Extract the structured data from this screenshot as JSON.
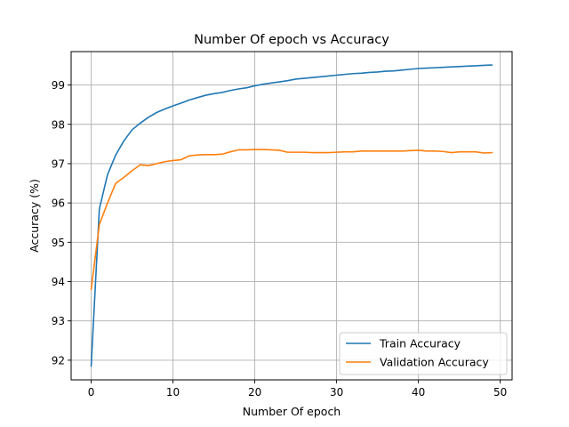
{
  "chart_data": {
    "type": "line",
    "title": "Number Of epoch vs Accuracy",
    "xlabel": "Number Of epoch",
    "ylabel": "Accuracy (%)",
    "xlim": [
      -2.45,
      51.45
    ],
    "ylim": [
      91.5,
      99.85
    ],
    "xticks": [
      0,
      10,
      20,
      30,
      40,
      50
    ],
    "yticks": [
      92,
      93,
      94,
      95,
      96,
      97,
      98,
      99
    ],
    "grid": true,
    "legend_position": "bottom-right",
    "x": [
      0,
      1,
      2,
      3,
      4,
      5,
      6,
      7,
      8,
      9,
      10,
      11,
      12,
      13,
      14,
      15,
      16,
      17,
      18,
      19,
      20,
      21,
      22,
      23,
      24,
      25,
      26,
      27,
      28,
      29,
      30,
      31,
      32,
      33,
      34,
      35,
      36,
      37,
      38,
      39,
      40,
      41,
      42,
      43,
      44,
      45,
      46,
      47,
      48,
      49
    ],
    "series": [
      {
        "name": "Train Accuracy",
        "color": "#1f77b4",
        "values": [
          91.85,
          95.85,
          96.72,
          97.22,
          97.58,
          97.86,
          98.03,
          98.18,
          98.3,
          98.39,
          98.47,
          98.54,
          98.62,
          98.68,
          98.74,
          98.78,
          98.81,
          98.86,
          98.9,
          98.93,
          98.98,
          99.02,
          99.05,
          99.08,
          99.11,
          99.15,
          99.17,
          99.19,
          99.21,
          99.23,
          99.25,
          99.27,
          99.29,
          99.3,
          99.32,
          99.33,
          99.35,
          99.36,
          99.38,
          99.4,
          99.42,
          99.43,
          99.44,
          99.45,
          99.46,
          99.47,
          99.48,
          99.49,
          99.5,
          99.51
        ]
      },
      {
        "name": "Validation Accuracy",
        "color": "#ff7f0e",
        "values": [
          93.8,
          95.45,
          96.0,
          96.5,
          96.65,
          96.82,
          96.97,
          96.95,
          97.0,
          97.05,
          97.08,
          97.1,
          97.2,
          97.22,
          97.23,
          97.23,
          97.24,
          97.3,
          97.35,
          97.35,
          97.36,
          97.36,
          97.35,
          97.34,
          97.29,
          97.29,
          97.29,
          97.28,
          97.28,
          97.28,
          97.29,
          97.3,
          97.3,
          97.32,
          97.32,
          97.32,
          97.32,
          97.32,
          97.32,
          97.33,
          97.34,
          97.32,
          97.32,
          97.31,
          97.28,
          97.3,
          97.3,
          97.3,
          97.27,
          97.28
        ]
      }
    ]
  }
}
